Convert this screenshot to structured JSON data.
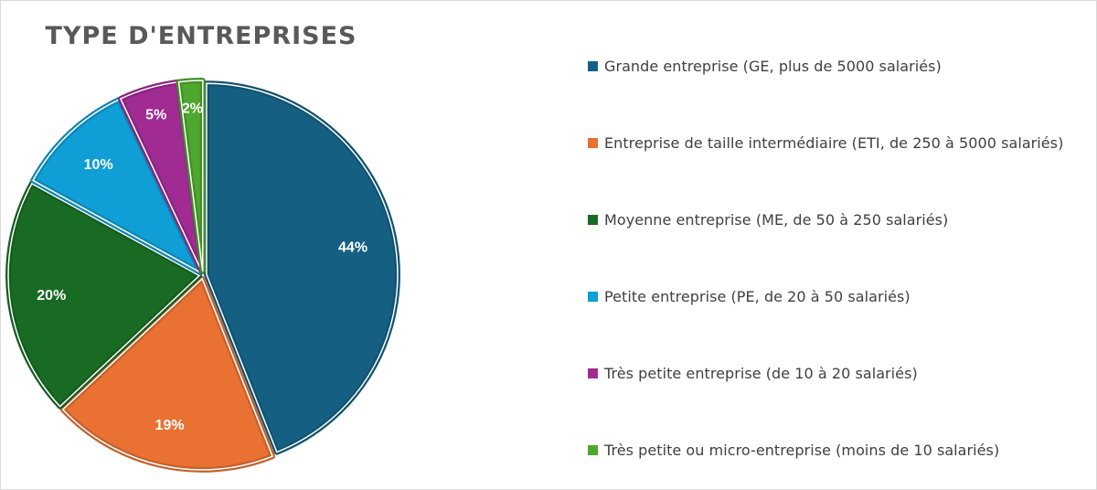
{
  "chart_data": {
    "type": "pie",
    "title": "TYPE D'ENTREPRISES",
    "legend_position": "right",
    "slices": [
      {
        "label": "Grande entreprise (GE, plus de 5000 salariés)",
        "value": 44,
        "display": "44%",
        "color": "#156082"
      },
      {
        "label": "Entreprise de taille intermédiaire (ETI, de 250 à 5000 salariés)",
        "value": 19,
        "display": "19%",
        "color": "#E97132"
      },
      {
        "label": "Moyenne entreprise (ME, de 50 à 250 salariés)",
        "value": 20,
        "display": "20%",
        "color": "#196B24"
      },
      {
        "label": "Petite entreprise (PE, de 20 à 50 salariés)",
        "value": 10,
        "display": "10%",
        "color": "#0F9ED5"
      },
      {
        "label": "Très petite entreprise (de 10 à 20 salariés)",
        "value": 5,
        "display": "5%",
        "color": "#A02B93"
      },
      {
        "label": "Très petite ou micro-entreprise (moins de 10 salariés)",
        "value": 2,
        "display": "2%",
        "color": "#4EA72E"
      }
    ]
  }
}
